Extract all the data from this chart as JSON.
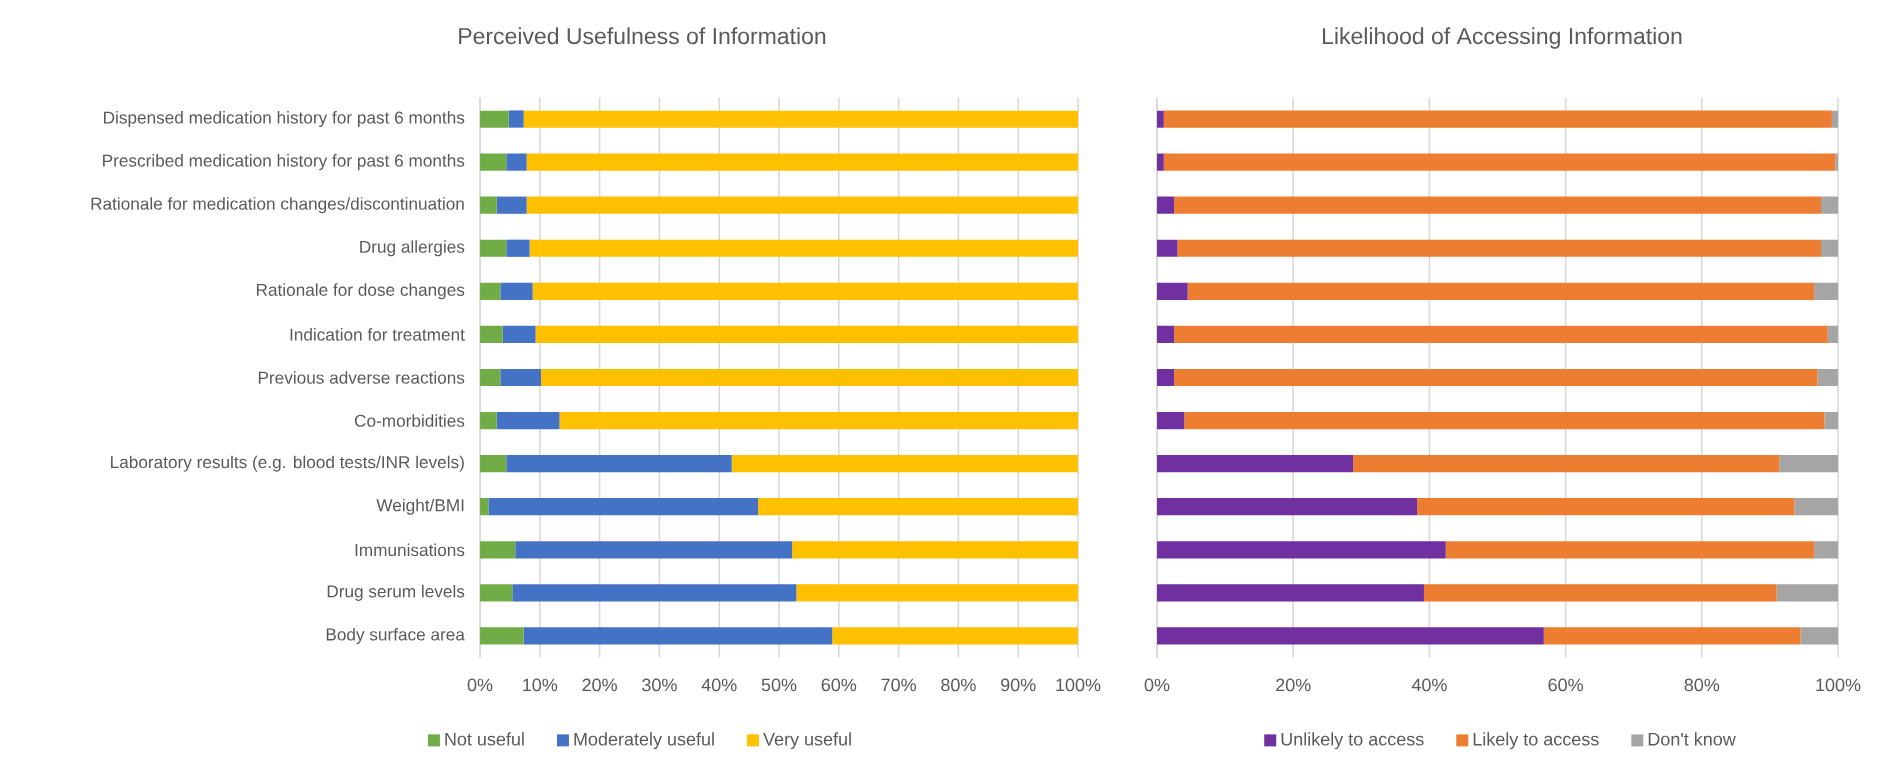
{
  "chart_data": [
    {
      "type": "bar",
      "orientation": "horizontal",
      "stacked": true,
      "title": "Perceived Usefulness of Information",
      "categories": [
        "Dispensed medication history for past 6 months",
        "Prescribed medication history for past 6 months",
        "Rationale for medication changes/discontinuation",
        "Drug allergies",
        "Rationale for dose changes",
        "Indication for treatment",
        "Previous adverse reactions",
        "Co-morbidities",
        "Laboratory results (e.g. blood tests/INR levels)",
        "Weight/BMI",
        "Immunisations",
        "Drug serum levels",
        "Body surface area"
      ],
      "series": [
        {
          "name": "Not useful",
          "color": "#70ad47",
          "values": [
            4.8,
            4.4,
            2.8,
            4.4,
            3.4,
            3.8,
            3.4,
            2.8,
            4.4,
            1.4,
            5.9,
            5.4,
            7.3
          ]
        },
        {
          "name": "Moderately useful",
          "color": "#4472c4",
          "values": [
            2.5,
            3.4,
            5.0,
            3.9,
            5.4,
            5.5,
            6.8,
            10.5,
            37.7,
            45.1,
            46.3,
            47.5,
            51.6
          ]
        },
        {
          "name": "Very useful",
          "color": "#ffc000",
          "values": [
            92.7,
            92.2,
            92.2,
            91.7,
            91.2,
            90.7,
            89.8,
            86.7,
            57.9,
            53.5,
            47.8,
            47.1,
            41.1
          ]
        }
      ],
      "xlim": [
        0,
        100
      ],
      "xticks": [
        {
          "value": 0,
          "label": "0%"
        },
        {
          "value": 10,
          "label": "10%"
        },
        {
          "value": 20,
          "label": "20%"
        },
        {
          "value": 30,
          "label": "30%"
        },
        {
          "value": 40,
          "label": "40%"
        },
        {
          "value": 50,
          "label": "50%"
        },
        {
          "value": 60,
          "label": "60%"
        },
        {
          "value": 70,
          "label": "70%"
        },
        {
          "value": 80,
          "label": "80%"
        },
        {
          "value": 90,
          "label": "90%"
        },
        {
          "value": 100,
          "label": "100%"
        }
      ],
      "grid": "x",
      "legend": "bottom"
    },
    {
      "type": "bar",
      "orientation": "horizontal",
      "stacked": true,
      "title": "Likelihood of Accessing Information",
      "categories": [
        null,
        null,
        null,
        null,
        null,
        null,
        null,
        null,
        null,
        null,
        null,
        null,
        null
      ],
      "series": [
        {
          "name": "Unlikely to access",
          "color": "#7030a0",
          "values": [
            1.0,
            1.0,
            2.5,
            3.0,
            4.5,
            2.5,
            2.5,
            4.0,
            28.8,
            38.2,
            42.4,
            39.2,
            56.8
          ]
        },
        {
          "name": "Likely to access",
          "color": "#ed7d31",
          "values": [
            98.1,
            98.6,
            95.0,
            94.5,
            92.0,
            96.0,
            94.5,
            94.0,
            62.6,
            55.4,
            54.1,
            51.8,
            37.7
          ]
        },
        {
          "name": "Don't know",
          "color": "#a5a5a5",
          "values": [
            0.9,
            0.4,
            2.5,
            2.5,
            3.5,
            1.5,
            3.0,
            2.0,
            8.6,
            6.4,
            3.5,
            9.0,
            5.5
          ]
        }
      ],
      "xlim": [
        0,
        100
      ],
      "xticks": [
        {
          "value": 0,
          "label": "0%"
        },
        {
          "value": 20,
          "label": "20%"
        },
        {
          "value": 40,
          "label": "40%"
        },
        {
          "value": 60,
          "label": "60%"
        },
        {
          "value": 80,
          "label": "80%"
        },
        {
          "value": 100,
          "label": "100%"
        }
      ],
      "grid": "x",
      "legend": "bottom",
      "tick_labels": "x"
    }
  ]
}
